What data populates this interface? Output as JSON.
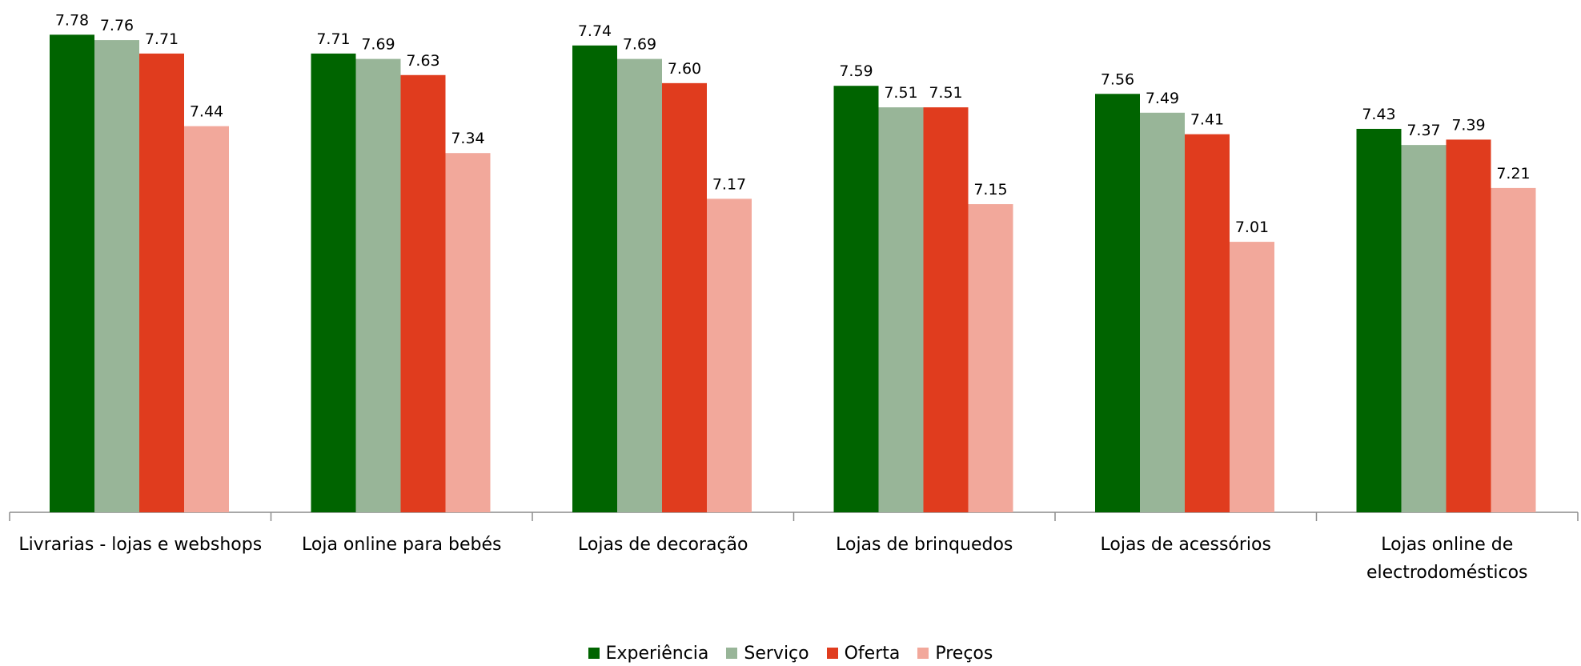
{
  "chart_data": {
    "type": "bar",
    "categories": [
      [
        "Livrarias - lojas e webshops"
      ],
      [
        "Loja online para bebés"
      ],
      [
        "Lojas de decoração"
      ],
      [
        "Lojas de brinquedos"
      ],
      [
        "Lojas de acessórios"
      ],
      [
        "Lojas online de",
        "electrodomésticos"
      ]
    ],
    "series": [
      {
        "name": "Experiência",
        "color": "#006400",
        "values": [
          7.78,
          7.71,
          7.74,
          7.59,
          7.56,
          7.43
        ]
      },
      {
        "name": "Serviço",
        "color": "#98B598",
        "values": [
          7.76,
          7.69,
          7.69,
          7.51,
          7.49,
          7.37
        ]
      },
      {
        "name": "Oferta",
        "color": "#E03C1E",
        "values": [
          7.71,
          7.63,
          7.6,
          7.51,
          7.41,
          7.39
        ]
      },
      {
        "name": "Preços",
        "color": "#F2A89B",
        "values": [
          7.44,
          7.34,
          7.17,
          7.15,
          7.01,
          7.21
        ]
      }
    ],
    "value_labels_decimals": 2,
    "legend": "bottom-center",
    "grid": false
  }
}
